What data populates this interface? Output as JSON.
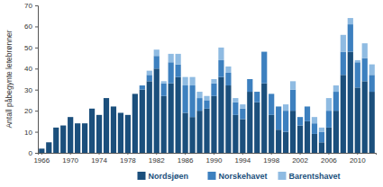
{
  "chart_data": {
    "type": "bar",
    "stacked": true,
    "grid": false,
    "legend": "bottom",
    "y_label": "Antall påbegynte letebrønner",
    "categories": [
      "1966",
      null,
      null,
      null,
      "1970",
      null,
      null,
      null,
      "1974",
      null,
      null,
      null,
      "1978",
      null,
      null,
      null,
      "1982",
      null,
      null,
      null,
      "1986",
      null,
      null,
      null,
      "1990",
      null,
      null,
      null,
      "1994",
      null,
      null,
      null,
      "1998",
      null,
      null,
      null,
      "2002",
      null,
      null,
      null,
      "2006",
      null,
      null,
      null,
      "2010",
      null,
      null
    ],
    "ylim": [
      0,
      70
    ],
    "yticks": [
      0,
      10,
      20,
      30,
      40,
      50,
      60,
      70
    ],
    "series": [
      {
        "name": "Nordsjøen",
        "color": "#1b4f7c",
        "values": [
          2,
          5,
          12,
          13,
          17,
          14,
          14,
          21,
          18,
          26,
          22,
          19,
          18,
          28,
          30,
          34,
          40,
          27,
          33,
          36,
          19,
          17,
          20,
          21,
          27,
          36,
          32,
          18,
          16,
          29,
          24,
          33,
          18,
          11,
          10,
          20,
          13,
          15,
          9,
          5,
          12,
          20,
          37,
          48,
          31,
          34,
          29
        ]
      },
      {
        "name": "Norskehavet",
        "color": "#3d80bf",
        "values": [
          0,
          0,
          0,
          0,
          0,
          0,
          0,
          0,
          0,
          0,
          0,
          0,
          0,
          0,
          2,
          3,
          6,
          6,
          10,
          6,
          13,
          15,
          6,
          4,
          6,
          8,
          6,
          6,
          5,
          6,
          5,
          15,
          10,
          11,
          10,
          10,
          4,
          7,
          5,
          5,
          8,
          9,
          11,
          13,
          12,
          11,
          8
        ]
      },
      {
        "name": "Barentshavet",
        "color": "#8fbbe2",
        "values": [
          0,
          0,
          0,
          0,
          0,
          0,
          0,
          0,
          0,
          0,
          0,
          0,
          0,
          0,
          0,
          2,
          3,
          1,
          4,
          5,
          4,
          4,
          3,
          2,
          2,
          6,
          3,
          2,
          2,
          0,
          0,
          0,
          0,
          0,
          3,
          4,
          0,
          0,
          3,
          2,
          6,
          3,
          8,
          3,
          1,
          7,
          5
        ]
      }
    ]
  }
}
